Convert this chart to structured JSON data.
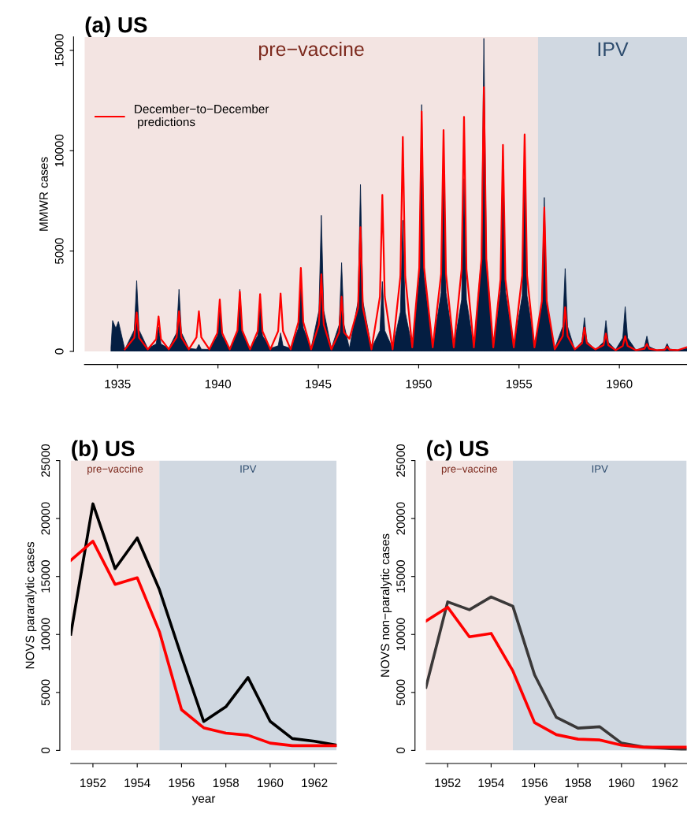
{
  "chart_data": [
    {
      "type": "area",
      "title": "(a) US",
      "ylabel": "MMWR cases",
      "xlim": [
        1933.35,
        1963.37
      ],
      "ylim": [
        0,
        15670
      ],
      "xticks": [
        1935,
        1940,
        1945,
        1950,
        1955,
        1960
      ],
      "yticks": [
        0,
        5000,
        10000,
        15000
      ],
      "legend": "upper left",
      "bands": [
        {
          "axis": "x",
          "from": 1933.35,
          "to": 1955.95,
          "label": "pre−vaccine",
          "color": "#f3e4e2"
        },
        {
          "axis": "x",
          "from": 1955.95,
          "to": 1963.37,
          "label": "IPV",
          "color": "#d0d8e1"
        }
      ],
      "x": [
        1934.67,
        1934.75,
        1934.91,
        1935.04,
        1935.36,
        1935.83,
        1935.95,
        1936.07,
        1936.5,
        1936.92,
        1937.04,
        1937.16,
        1937.55,
        1937.94,
        1938.06,
        1938.18,
        1938.55,
        1938.93,
        1939.05,
        1939.17,
        1939.57,
        1939.97,
        1940.09,
        1940.21,
        1940.59,
        1940.97,
        1941.09,
        1941.21,
        1941.6,
        1941.98,
        1942.1,
        1942.22,
        1942.61,
        1943.0,
        1943.12,
        1943.24,
        1943.62,
        1944.01,
        1944.13,
        1944.25,
        1944.64,
        1945.03,
        1945.15,
        1945.27,
        1945.65,
        1946.04,
        1946.16,
        1946.28,
        1946.55,
        1946.98,
        1947.1,
        1947.22,
        1947.65,
        1948.07,
        1948.19,
        1948.31,
        1948.7,
        1949.09,
        1949.21,
        1949.33,
        1949.68,
        1950.03,
        1950.15,
        1950.27,
        1950.7,
        1951.12,
        1951.24,
        1951.36,
        1951.75,
        1952.14,
        1952.26,
        1952.38,
        1952.75,
        1953.13,
        1953.25,
        1953.37,
        1953.72,
        1954.08,
        1954.2,
        1954.32,
        1954.74,
        1955.16,
        1955.28,
        1955.4,
        1955.77,
        1956.14,
        1956.26,
        1956.38,
        1956.78,
        1957.18,
        1957.3,
        1957.42,
        1957.78,
        1958.14,
        1958.26,
        1958.38,
        1958.8,
        1959.21,
        1959.33,
        1959.45,
        1959.81,
        1960.17,
        1960.29,
        1960.41,
        1960.83,
        1961.25,
        1961.37,
        1961.49,
        1961.87,
        1962.26,
        1962.38,
        1962.5,
        1962.9,
        1963.37
      ],
      "series": [
        {
          "type": "area",
          "color": "#041e42",
          "values": [
            200,
            1540,
            1150,
            1490,
            100,
            1060,
            3530,
            1060,
            150,
            370,
            1220,
            370,
            150,
            930,
            3090,
            930,
            150,
            110,
            350,
            110,
            100,
            770,
            2550,
            770,
            150,
            930,
            3090,
            930,
            150,
            780,
            2590,
            780,
            150,
            280,
            920,
            280,
            150,
            1170,
            3900,
            1170,
            150,
            2030,
            6780,
            2030,
            150,
            1330,
            4420,
            1330,
            150,
            2500,
            8320,
            2500,
            150,
            1040,
            3480,
            1040,
            150,
            1960,
            6540,
            1960,
            200,
            3690,
            12300,
            3690,
            200,
            2920,
            9720,
            2920,
            200,
            2580,
            8610,
            2580,
            200,
            4680,
            15600,
            4680,
            200,
            3010,
            10030,
            3010,
            200,
            2780,
            9270,
            2780,
            300,
            2300,
            7670,
            2300,
            150,
            1240,
            4130,
            1240,
            80,
            500,
            1680,
            500,
            80,
            460,
            1540,
            460,
            80,
            670,
            2230,
            670,
            60,
            230,
            760,
            230,
            60,
            120,
            390,
            120,
            60,
            150
          ]
        },
        {
          "type": "line",
          "name": "December−to−December\n predictions",
          "color": "#ff0000",
          "values": [
            null,
            null,
            null,
            null,
            100,
            680,
            1940,
            680,
            100,
            610,
            1740,
            610,
            100,
            700,
            2000,
            700,
            100,
            700,
            2000,
            700,
            100,
            910,
            2590,
            910,
            100,
            1040,
            2980,
            1040,
            100,
            1000,
            2850,
            1000,
            100,
            1010,
            2880,
            1010,
            100,
            1460,
            4160,
            1460,
            100,
            1340,
            3840,
            1340,
            100,
            950,
            2720,
            950,
            630,
            2170,
            6190,
            2170,
            100,
            2730,
            7800,
            2730,
            100,
            3740,
            10680,
            3740,
            200,
            4180,
            11950,
            4180,
            200,
            3860,
            11030,
            3860,
            200,
            4090,
            11690,
            4090,
            200,
            4610,
            13170,
            4610,
            200,
            3600,
            10290,
            3600,
            200,
            3780,
            10810,
            3780,
            200,
            2510,
            7170,
            2510,
            100,
            770,
            2200,
            770,
            100,
            410,
            1180,
            410,
            100,
            310,
            890,
            310,
            60,
            270,
            760,
            270,
            60,
            130,
            370,
            130,
            60,
            80,
            240,
            80,
            60,
            210
          ]
        }
      ]
    },
    {
      "type": "line",
      "title": "(b) US",
      "xlabel": "year",
      "ylabel": "NOVS pararalytic cases",
      "xlim": [
        1951,
        1963
      ],
      "ylim": [
        0,
        25000
      ],
      "xticks": [
        1952,
        1954,
        1956,
        1958,
        1960,
        1962
      ],
      "yticks": [
        0,
        5000,
        10000,
        15000,
        20000,
        25000
      ],
      "bands": [
        {
          "axis": "x",
          "from": 1951,
          "to": 1955,
          "label": "pre−vaccine",
          "color": "#f3e4e2"
        },
        {
          "axis": "x",
          "from": 1955,
          "to": 1963,
          "label": "IPV",
          "color": "#d0d8e1"
        }
      ],
      "x": [
        1951,
        1952,
        1953,
        1954,
        1955,
        1956,
        1957,
        1958,
        1959,
        1960,
        1961,
        1962,
        1963
      ],
      "series": [
        {
          "color": "#000000",
          "values": [
            10020,
            21270,
            15680,
            18330,
            13870,
            8100,
            2490,
            3760,
            6290,
            2510,
            1020,
            790,
            450
          ]
        },
        {
          "color": "#ff0000",
          "values": [
            16400,
            18050,
            14320,
            14890,
            10250,
            3510,
            1950,
            1490,
            1310,
            630,
            410,
            410,
            410
          ]
        }
      ]
    },
    {
      "type": "line",
      "title": "(c) US",
      "xlabel": "year",
      "ylabel": "NOVS non−paralytic cases",
      "xlim": [
        1951,
        1963
      ],
      "ylim": [
        0,
        25000
      ],
      "xticks": [
        1952,
        1954,
        1956,
        1958,
        1960,
        1962
      ],
      "yticks": [
        0,
        5000,
        10000,
        15000,
        20000,
        25000
      ],
      "bands": [
        {
          "axis": "x",
          "from": 1951,
          "to": 1955,
          "label": "pre−vaccine",
          "color": "#f3e4e2"
        },
        {
          "axis": "x",
          "from": 1955,
          "to": 1963,
          "label": "IPV",
          "color": "#d0d8e1"
        }
      ],
      "x": [
        1951,
        1952,
        1953,
        1954,
        1955,
        1956,
        1957,
        1958,
        1959,
        1960,
        1961,
        1962,
        1963
      ],
      "series": [
        {
          "color": "#3a3838",
          "values": [
            5450,
            12810,
            12130,
            13240,
            12440,
            6520,
            2850,
            1920,
            2040,
            630,
            290,
            180,
            50
          ]
        },
        {
          "color": "#ff0000",
          "values": [
            11150,
            12350,
            9800,
            10090,
            6860,
            2400,
            1360,
            970,
            900,
            450,
            270,
            270,
            270
          ]
        }
      ]
    }
  ]
}
